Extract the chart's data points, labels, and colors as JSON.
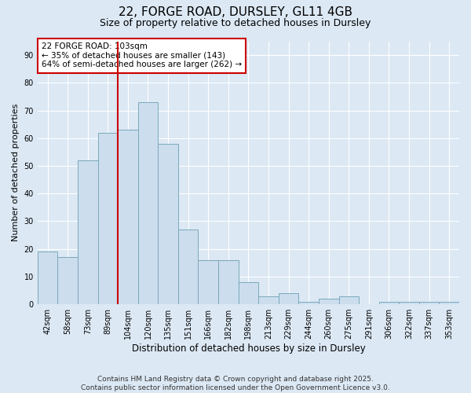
{
  "title": "22, FORGE ROAD, DURSLEY, GL11 4GB",
  "subtitle": "Size of property relative to detached houses in Dursley",
  "xlabel": "Distribution of detached houses by size in Dursley",
  "ylabel": "Number of detached properties",
  "categories": [
    "42sqm",
    "58sqm",
    "73sqm",
    "89sqm",
    "104sqm",
    "120sqm",
    "135sqm",
    "151sqm",
    "166sqm",
    "182sqm",
    "198sqm",
    "213sqm",
    "229sqm",
    "244sqm",
    "260sqm",
    "275sqm",
    "291sqm",
    "306sqm",
    "322sqm",
    "337sqm",
    "353sqm"
  ],
  "values": [
    19,
    17,
    52,
    62,
    63,
    73,
    58,
    27,
    16,
    16,
    8,
    3,
    4,
    1,
    2,
    3,
    0,
    1,
    1,
    1,
    1
  ],
  "bar_color": "#ccdded",
  "bar_edge_color": "#7aaabb",
  "vline_color": "#cc0000",
  "annotation_text": "22 FORGE ROAD: 103sqm\n← 35% of detached houses are smaller (143)\n64% of semi-detached houses are larger (262) →",
  "annotation_box_color": "#ffffff",
  "annotation_box_edge": "#cc0000",
  "ylim": [
    0,
    95
  ],
  "yticks": [
    0,
    10,
    20,
    30,
    40,
    50,
    60,
    70,
    80,
    90
  ],
  "bg_color": "#dce8f4",
  "footer_text": "Contains HM Land Registry data © Crown copyright and database right 2025.\nContains public sector information licensed under the Open Government Licence v3.0.",
  "title_fontsize": 11,
  "subtitle_fontsize": 9,
  "xlabel_fontsize": 8.5,
  "ylabel_fontsize": 8,
  "tick_fontsize": 7,
  "annotation_fontsize": 7.5,
  "footer_fontsize": 6.5
}
